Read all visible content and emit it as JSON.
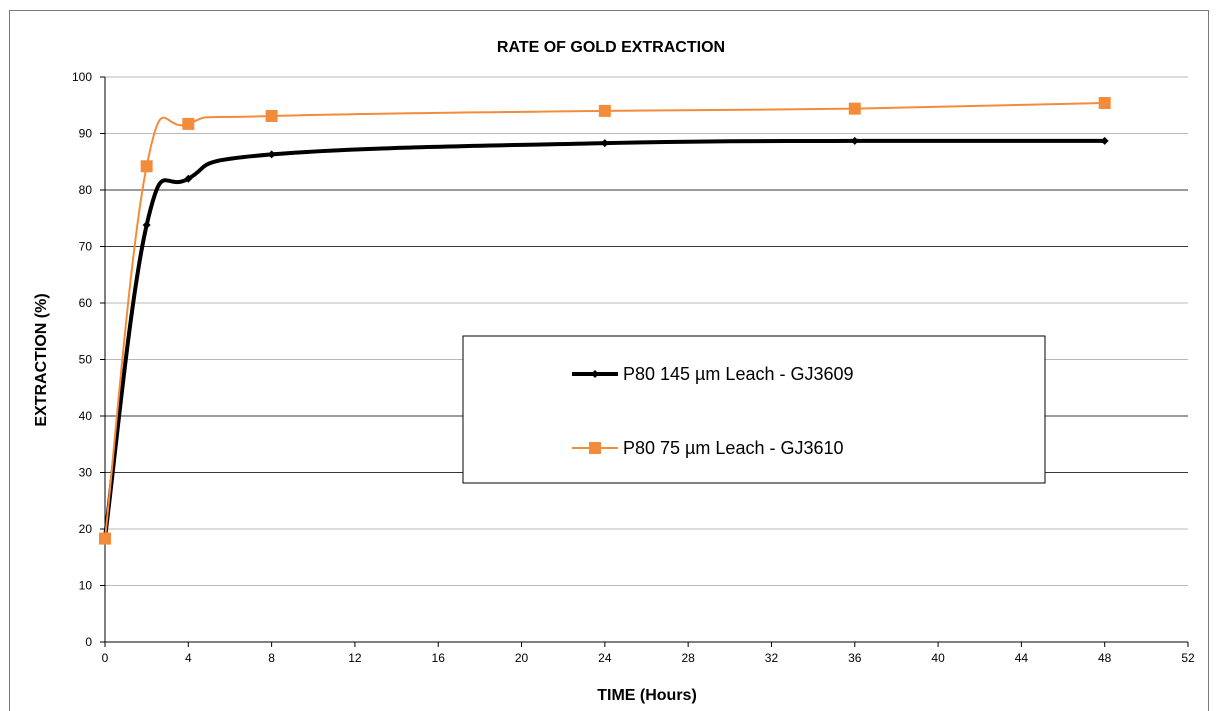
{
  "chart_data": {
    "type": "line",
    "title": "RATE OF GOLD EXTRACTION",
    "xlabel": "TIME (Hours)",
    "ylabel": "EXTRACTION (%)",
    "xlim": [
      0,
      52
    ],
    "ylim": [
      0,
      100
    ],
    "xticks": [
      0,
      4,
      8,
      12,
      16,
      20,
      24,
      28,
      32,
      36,
      40,
      44,
      48,
      52
    ],
    "yticks": [
      0,
      10,
      20,
      30,
      40,
      50,
      60,
      70,
      80,
      90,
      100
    ],
    "grid": "horizontal",
    "legend_position": "center-right",
    "series": [
      {
        "name": "P80 145 µm Leach - GJ3609",
        "color": "#000000",
        "marker": "diamond",
        "x": [
          0,
          2,
          4,
          8,
          24,
          36,
          48
        ],
        "y": [
          18.5,
          73.8,
          82.0,
          86.3,
          88.3,
          88.7,
          88.7
        ]
      },
      {
        "name": "P80 75 µm Leach - GJ3610",
        "color": "#f28c3a",
        "marker": "square",
        "x": [
          0,
          2,
          4,
          8,
          24,
          36,
          48
        ],
        "y": [
          18.3,
          84.2,
          91.7,
          93.1,
          94.0,
          94.4,
          95.4
        ]
      }
    ]
  }
}
